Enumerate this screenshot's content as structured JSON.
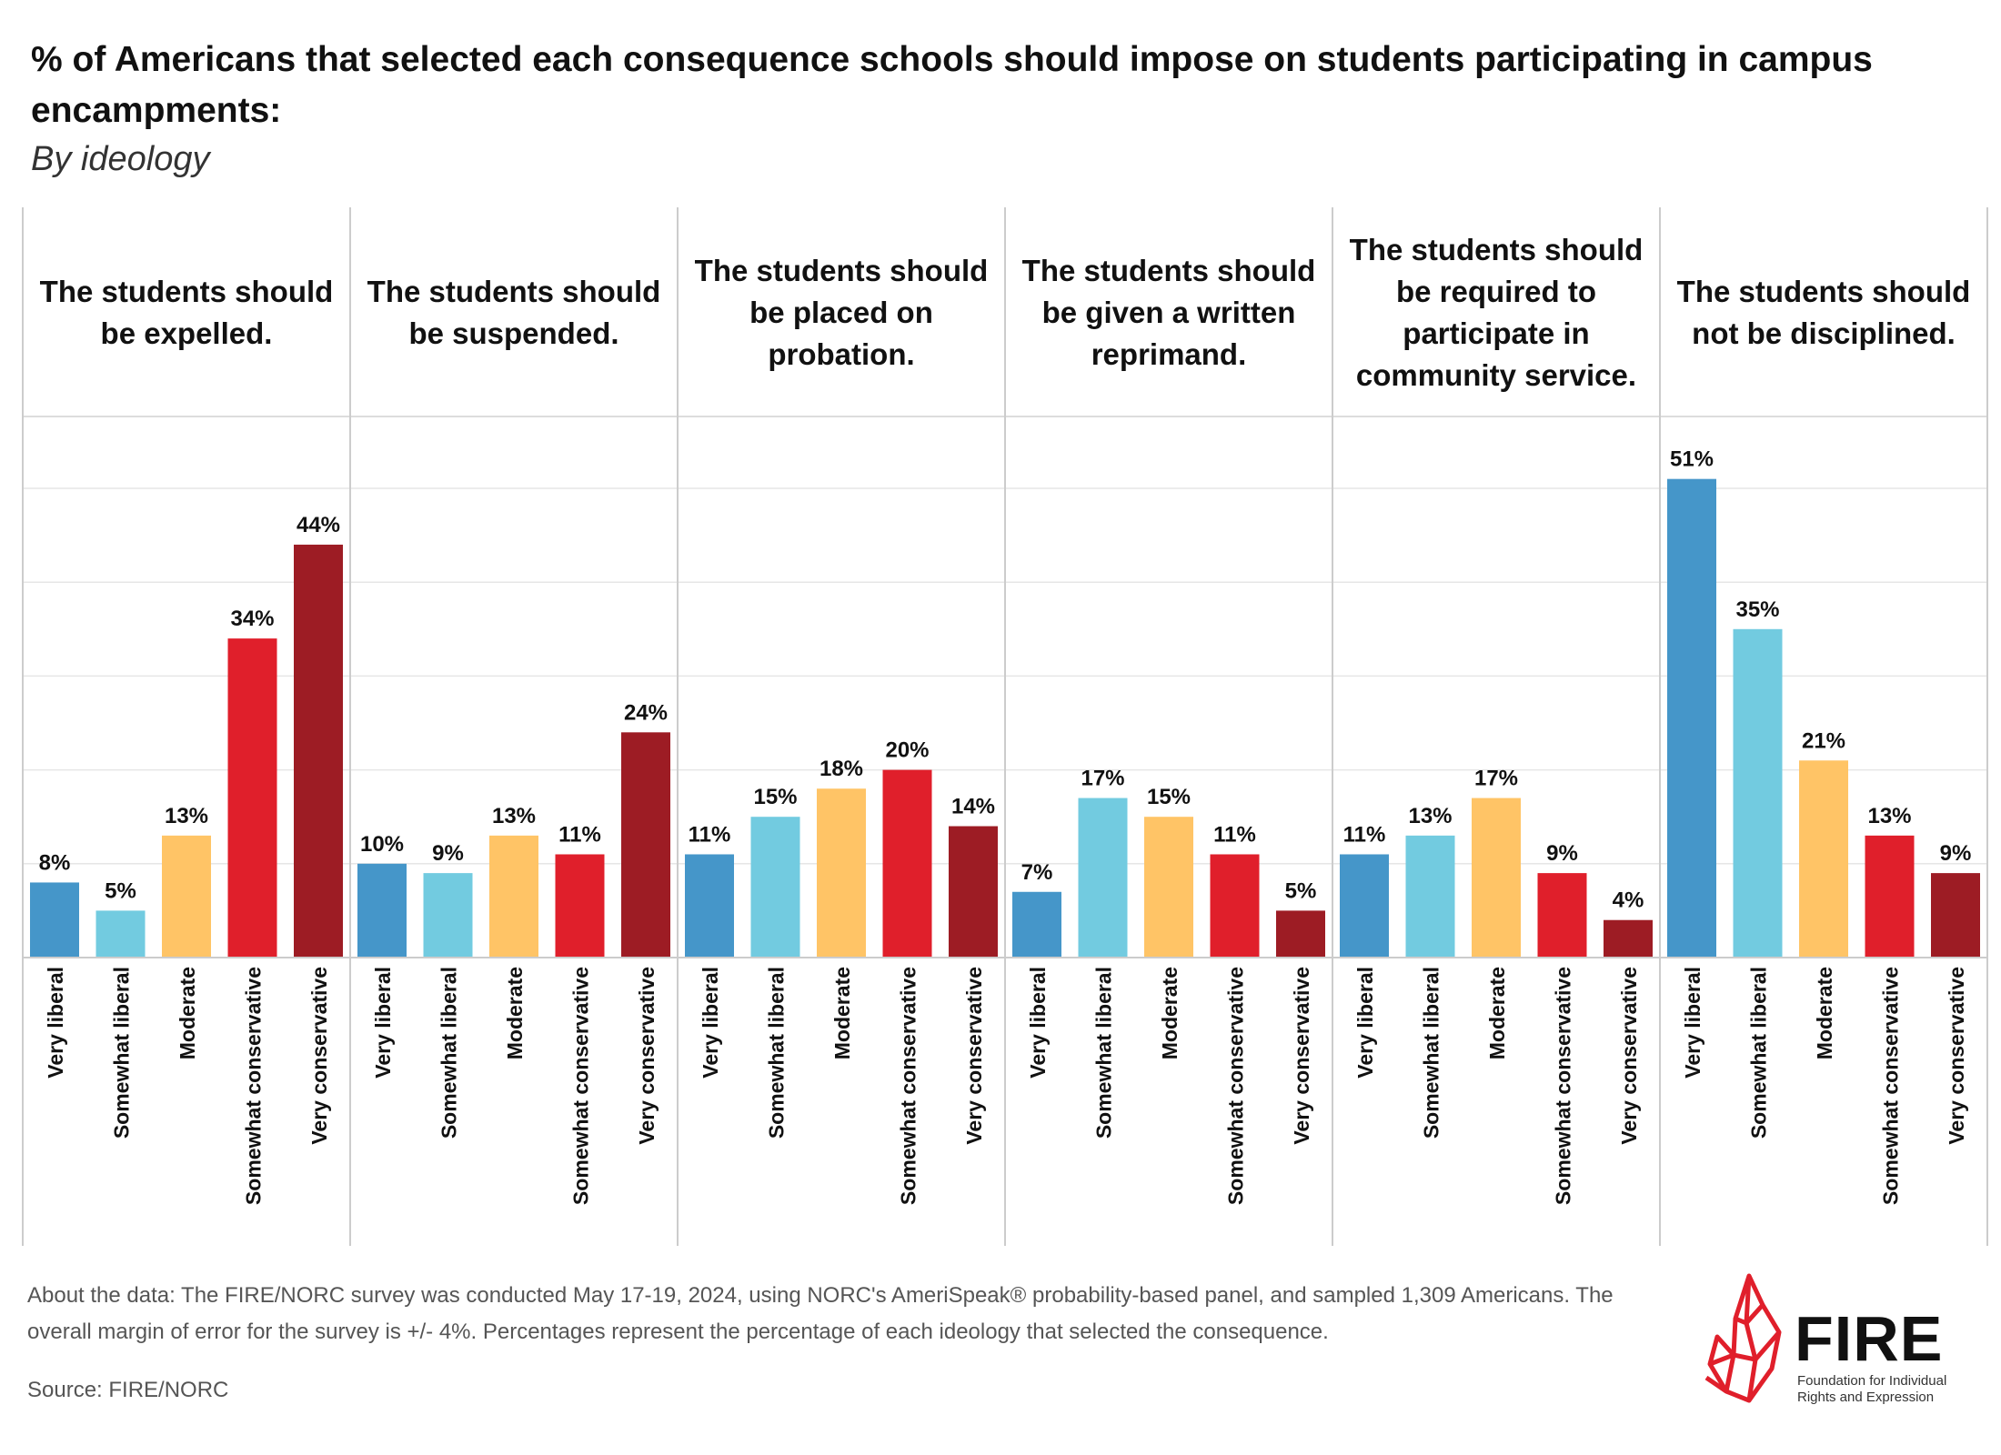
{
  "chart_data": {
    "type": "bar",
    "title": "% of Americans that selected each consequence schools should impose on students participating in campus encampments:",
    "subtitle": "By ideology",
    "ylim": [
      0,
      60
    ],
    "grid": true,
    "categories": [
      "Very liberal",
      "Somewhat liberal",
      "Moderate",
      "Somewhat conservative",
      "Very conservative"
    ],
    "colors": [
      "#4596c9",
      "#72cbe0",
      "#ffc466",
      "#e01f2b",
      "#9d1c24"
    ],
    "panels": [
      {
        "title": "The students should be expelled.",
        "title_lines": [
          "The students should",
          "be expelled."
        ],
        "values": [
          8,
          5,
          13,
          34,
          44
        ],
        "labels": [
          "8%",
          "5%",
          "13%",
          "34%",
          "44%"
        ]
      },
      {
        "title": "The students should be suspended.",
        "title_lines": [
          "The students should",
          "be suspended."
        ],
        "values": [
          10,
          9,
          13,
          11,
          24
        ],
        "labels": [
          "10%",
          "9%",
          "13%",
          "11%",
          "24%"
        ]
      },
      {
        "title": "The students should be placed on probation.",
        "title_lines": [
          "The students should",
          "be placed on",
          "probation."
        ],
        "values": [
          11,
          15,
          18,
          20,
          14
        ],
        "labels": [
          "11%",
          "15%",
          "18%",
          "20%",
          "14%"
        ]
      },
      {
        "title": "The students should be given a written reprimand.",
        "title_lines": [
          "The students should",
          "be given a written",
          "reprimand."
        ],
        "values": [
          7,
          17,
          15,
          11,
          5
        ],
        "labels": [
          "7%",
          "17%",
          "15%",
          "11%",
          "5%"
        ]
      },
      {
        "title": "The students should be required to participate in community service.",
        "title_lines": [
          "The students should",
          "be required to",
          "participate in",
          "community service."
        ],
        "values": [
          11,
          13,
          17,
          9,
          4
        ],
        "labels": [
          "11%",
          "13%",
          "17%",
          "9%",
          "4%"
        ]
      },
      {
        "title": "The students should not be disciplined.",
        "title_lines": [
          "The students should",
          "not be disciplined."
        ],
        "values": [
          51,
          35,
          21,
          13,
          9
        ],
        "labels": [
          "51%",
          "35%",
          "21%",
          "13%",
          "9%"
        ]
      }
    ]
  },
  "footer": {
    "about": "About the data: The FIRE/NORC survey was conducted May 17-19, 2024, using NORC's AmeriSpeak® probability-based panel, and sampled 1,309 Americans. The overall margin of error for the survey is +/- 4%. Percentages represent the percentage of each ideology that selected the consequence.",
    "source": "Source: FIRE/NORC"
  },
  "logo": {
    "name": "FIRE",
    "tagline_1": "Foundation for Individual",
    "tagline_2": "Rights and Expression"
  }
}
